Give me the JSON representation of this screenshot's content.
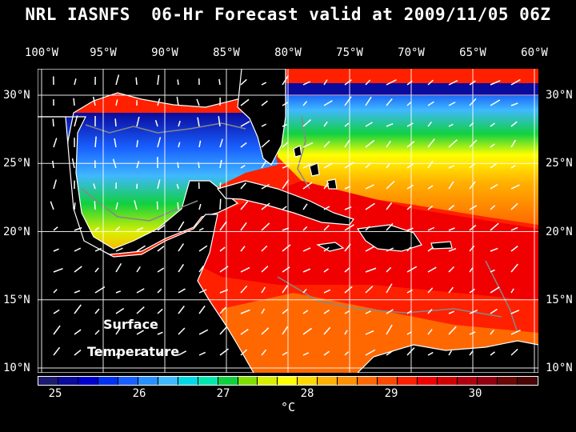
{
  "title": "NRL IASNFS  06-Hr Forecast valid at 2009/11/05 06Z",
  "lon_labels": [
    "100°W",
    "95°W",
    "90°W",
    "85°W",
    "80°W",
    "75°W",
    "70°W",
    "65°W",
    "60°W"
  ],
  "lat_labels": [
    "30°N",
    "25°N",
    "20°N",
    "15°N",
    "10°N"
  ],
  "map_labels": {
    "line1": "Surface",
    "line2": "Temperature"
  },
  "colorbar": {
    "ticks": [
      "25",
      "26",
      "27",
      "28",
      "29",
      "30"
    ],
    "unit": "°C",
    "colors": [
      "#1a1a6e",
      "#0a0a9c",
      "#0000cc",
      "#0030f0",
      "#1860ff",
      "#2890ff",
      "#40b8ff",
      "#00d8e8",
      "#00e8b0",
      "#10d040",
      "#80e000",
      "#d8f000",
      "#ffff00",
      "#ffd800",
      "#ffb000",
      "#ff9000",
      "#ff6800",
      "#ff4800",
      "#ff2000",
      "#f00000",
      "#d00000",
      "#b00010",
      "#900010",
      "#6a0808",
      "#4a0404"
    ]
  },
  "map": {
    "extent": {
      "lon_min": -100,
      "lon_max": -60,
      "lat_min": 10,
      "lat_max": 31
    },
    "land_color": "#000000",
    "coast_color": "#ffffff",
    "bathy_color": "#888888",
    "wind_vector_color": "#ffffff"
  }
}
